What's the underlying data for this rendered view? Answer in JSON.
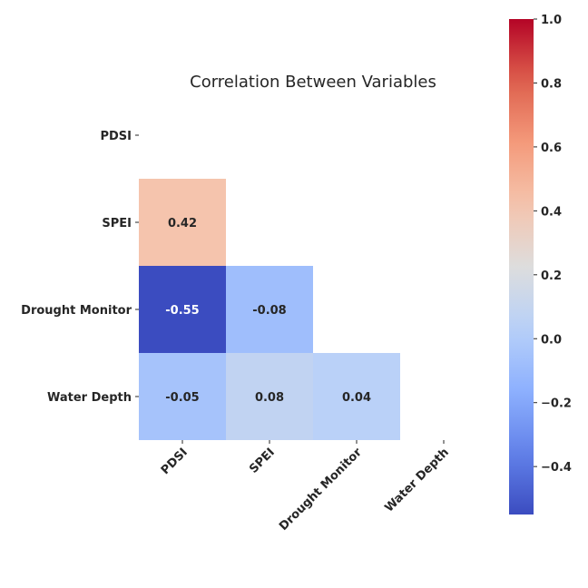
{
  "chart_data": {
    "type": "heatmap",
    "title": "Correlation Between Variables",
    "variables": [
      "PDSI",
      "SPEI",
      "Drought Monitor",
      "Water Depth"
    ],
    "mask": "upper-triangle",
    "cells": [
      {
        "row": "SPEI",
        "col": "PDSI",
        "value": 0.42,
        "label": "0.42"
      },
      {
        "row": "Drought Monitor",
        "col": "PDSI",
        "value": -0.55,
        "label": "-0.55"
      },
      {
        "row": "Drought Monitor",
        "col": "SPEI",
        "value": -0.08,
        "label": "-0.08"
      },
      {
        "row": "Water Depth",
        "col": "PDSI",
        "value": -0.05,
        "label": "-0.05"
      },
      {
        "row": "Water Depth",
        "col": "SPEI",
        "value": 0.08,
        "label": "0.08"
      },
      {
        "row": "Water Depth",
        "col": "Drought Monitor",
        "value": 0.04,
        "label": "0.04"
      }
    ],
    "colormap": "coolwarm",
    "colorbar": {
      "range": [
        -0.55,
        1.0
      ],
      "ticks": [
        1.0,
        0.8,
        0.6,
        0.4,
        0.2,
        0.0,
        -0.2,
        -0.4
      ],
      "tick_labels": [
        "1.0",
        "0.8",
        "0.6",
        "0.4",
        "0.2",
        "0.0",
        "−0.2",
        "−0.4"
      ],
      "placement": "right"
    }
  }
}
